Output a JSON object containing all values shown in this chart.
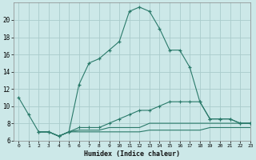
{
  "xlabel": "Humidex (Indice chaleur)",
  "bg_color": "#cce8e8",
  "grid_color": "#aacccc",
  "line_color": "#2a7a6a",
  "line1_x": [
    0,
    1,
    2,
    3,
    4,
    5,
    6,
    7,
    8,
    9,
    10,
    11,
    12,
    13,
    14,
    15,
    16,
    17,
    18,
    19,
    20,
    21,
    22,
    23
  ],
  "line1_y": [
    11,
    9,
    7,
    7,
    6.5,
    7,
    12.5,
    15,
    15.5,
    16.5,
    17.5,
    21,
    21.5,
    21,
    19,
    16.5,
    16.5,
    14.5,
    10.5,
    8.5,
    8.5,
    8.5,
    8,
    8
  ],
  "line2_x": [
    2,
    3,
    4,
    5,
    6,
    7,
    8,
    9,
    10,
    11,
    12,
    13,
    14,
    15,
    16,
    17,
    18,
    19,
    20,
    21,
    22,
    23
  ],
  "line2_y": [
    7,
    7,
    6.5,
    7,
    7.5,
    7.5,
    7.5,
    8,
    8.5,
    9,
    9.5,
    9.5,
    10,
    10.5,
    10.5,
    10.5,
    10.5,
    8.5,
    8.5,
    8.5,
    8,
    8
  ],
  "line3_x": [
    2,
    3,
    4,
    5,
    6,
    7,
    8,
    9,
    10,
    11,
    12,
    13,
    14,
    15,
    16,
    17,
    18,
    19,
    20,
    21,
    22,
    23
  ],
  "line3_y": [
    7,
    7,
    6.5,
    7,
    7.2,
    7.2,
    7.2,
    7.5,
    7.5,
    7.5,
    7.5,
    8,
    8,
    8,
    8,
    8,
    8,
    8,
    8,
    8,
    8,
    8
  ],
  "line4_x": [
    2,
    3,
    4,
    5,
    6,
    7,
    8,
    9,
    10,
    11,
    12,
    13,
    14,
    15,
    16,
    17,
    18,
    19,
    20,
    21,
    22,
    23
  ],
  "line4_y": [
    7,
    7,
    6.5,
    7,
    7,
    7,
    7,
    7,
    7,
    7,
    7,
    7.2,
    7.2,
    7.2,
    7.2,
    7.2,
    7.2,
    7.5,
    7.5,
    7.5,
    7.5,
    7.5
  ],
  "ylim": [
    6,
    22
  ],
  "xlim": [
    -0.5,
    23
  ],
  "yticks": [
    6,
    8,
    10,
    12,
    14,
    16,
    18,
    20
  ],
  "xticks": [
    0,
    1,
    2,
    3,
    4,
    5,
    6,
    7,
    8,
    9,
    10,
    11,
    12,
    13,
    14,
    15,
    16,
    17,
    18,
    19,
    20,
    21,
    22,
    23
  ]
}
